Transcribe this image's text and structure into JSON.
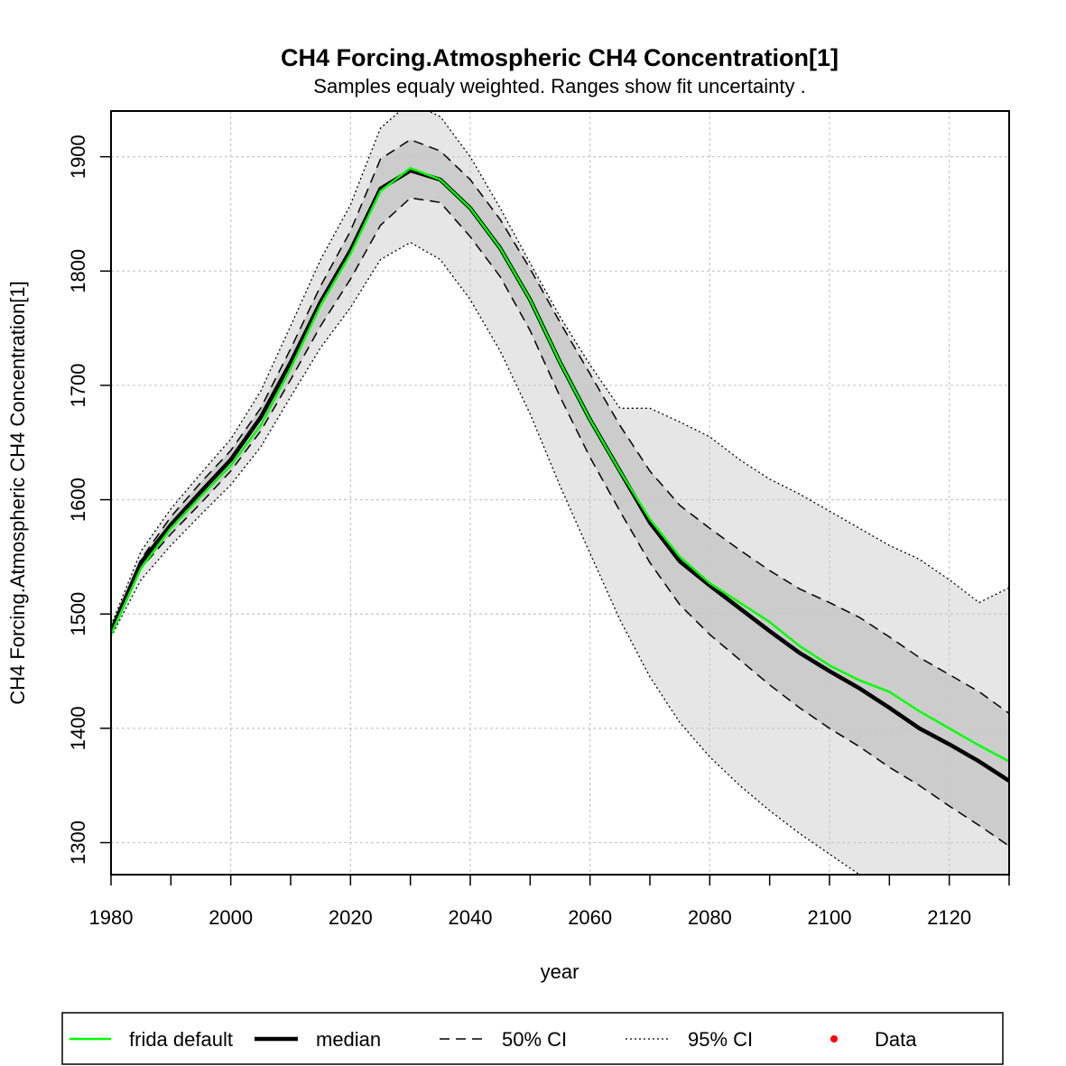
{
  "chart_data": {
    "type": "line",
    "title": "CH4 Forcing.Atmospheric CH4 Concentration[1]",
    "subtitle": "Samples equaly weighted. Ranges show  fit uncertainty .",
    "xlabel": "year",
    "ylabel": "CH4 Forcing.Atmospheric CH4 Concentration[1]",
    "xlim": [
      1980,
      2130
    ],
    "ylim": [
      1272,
      1940
    ],
    "xticks": [
      1980,
      2000,
      2020,
      2040,
      2060,
      2080,
      2100,
      2120
    ],
    "xticks_minor": [
      1990,
      2010,
      2030,
      2050,
      2070,
      2090,
      2110,
      2130
    ],
    "yticks": [
      1300,
      1400,
      1500,
      1600,
      1700,
      1800,
      1900
    ],
    "grid": true,
    "legend_position": "bottom",
    "colors": {
      "frida_default": "#00ff00",
      "median": "#000000",
      "ci50_fill": "#cccccc",
      "ci95_fill": "#e6e6e6",
      "grid": "#c8c8c8",
      "data": "#ff0000"
    },
    "x": [
      1980,
      1985,
      1990,
      1995,
      2000,
      2005,
      2010,
      2015,
      2020,
      2025,
      2030,
      2035,
      2040,
      2045,
      2050,
      2055,
      2060,
      2065,
      2070,
      2075,
      2080,
      2085,
      2090,
      2095,
      2100,
      2105,
      2110,
      2115,
      2120,
      2125,
      2130
    ],
    "series": [
      {
        "name": "frida default",
        "role": "line",
        "values": [
          1482,
          1540,
          1575,
          1603,
          1630,
          1665,
          1715,
          1770,
          1815,
          1870,
          1890,
          1880,
          1855,
          1820,
          1775,
          1720,
          1670,
          1625,
          1583,
          1550,
          1527,
          1510,
          1493,
          1472,
          1455,
          1442,
          1432,
          1415,
          1400,
          1385,
          1371
        ]
      },
      {
        "name": "median",
        "role": "line",
        "values": [
          1485,
          1545,
          1578,
          1607,
          1635,
          1672,
          1720,
          1773,
          1818,
          1872,
          1888,
          1880,
          1855,
          1820,
          1775,
          1720,
          1670,
          1625,
          1580,
          1546,
          1525,
          1505,
          1485,
          1466,
          1450,
          1435,
          1418,
          1400,
          1386,
          1371,
          1354
        ]
      },
      {
        "name": "50% CI",
        "role": "band",
        "lower": [
          1483,
          1540,
          1570,
          1597,
          1625,
          1660,
          1705,
          1752,
          1793,
          1840,
          1864,
          1860,
          1830,
          1795,
          1748,
          1690,
          1637,
          1590,
          1545,
          1508,
          1482,
          1460,
          1438,
          1418,
          1400,
          1384,
          1366,
          1350,
          1332,
          1315,
          1297
        ],
        "upper": [
          1487,
          1548,
          1585,
          1615,
          1643,
          1680,
          1732,
          1787,
          1835,
          1898,
          1915,
          1905,
          1880,
          1845,
          1802,
          1755,
          1710,
          1665,
          1625,
          1595,
          1575,
          1556,
          1538,
          1522,
          1510,
          1497,
          1480,
          1462,
          1447,
          1432,
          1413
        ]
      },
      {
        "name": "95% CI",
        "role": "band",
        "lower": [
          1480,
          1530,
          1560,
          1587,
          1613,
          1646,
          1690,
          1733,
          1768,
          1810,
          1825,
          1810,
          1775,
          1730,
          1675,
          1612,
          1553,
          1495,
          1445,
          1405,
          1375,
          1350,
          1328,
          1308,
          1290,
          1272,
          1255,
          1240,
          1225,
          1210,
          1195
        ],
        "upper": [
          1490,
          1555,
          1592,
          1623,
          1653,
          1695,
          1752,
          1810,
          1858,
          1925,
          1948,
          1935,
          1900,
          1855,
          1807,
          1760,
          1718,
          1680,
          1680,
          1668,
          1655,
          1635,
          1618,
          1605,
          1590,
          1575,
          1560,
          1548,
          1530,
          1510,
          1523
        ]
      }
    ],
    "legend": [
      {
        "label": "frida default",
        "style": "solid",
        "color": "#00ff00"
      },
      {
        "label": "median",
        "style": "solid-thick",
        "color": "#000000"
      },
      {
        "label": "50% CI",
        "style": "dashed",
        "color": "#000000"
      },
      {
        "label": "95% CI",
        "style": "dotted",
        "color": "#000000"
      },
      {
        "label": "Data",
        "style": "point",
        "color": "#ff0000"
      }
    ]
  }
}
